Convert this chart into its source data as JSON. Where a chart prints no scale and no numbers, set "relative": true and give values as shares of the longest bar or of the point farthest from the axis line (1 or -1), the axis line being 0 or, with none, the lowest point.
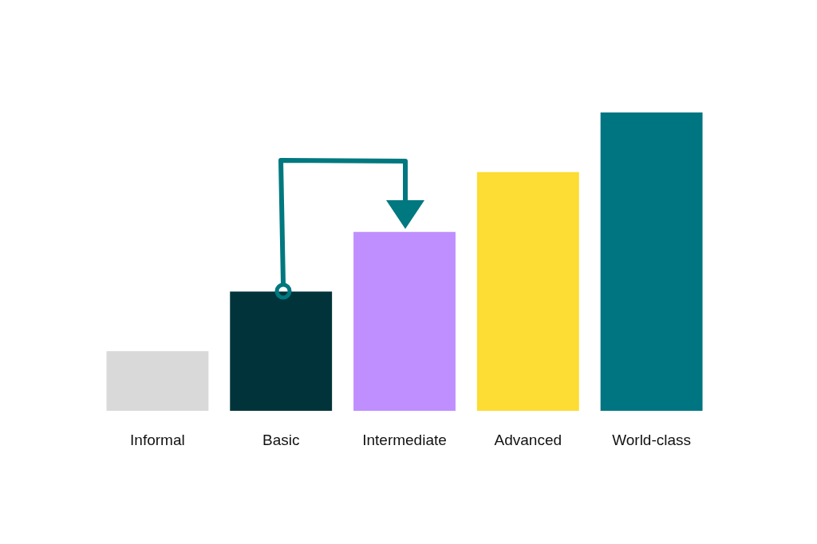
{
  "chart_data": {
    "type": "bar",
    "relative": true,
    "categories": [
      "Informal",
      "Basic",
      "Intermediate",
      "Advanced",
      "World-class"
    ],
    "values": [
      0.2,
      0.4,
      0.6,
      0.8,
      1
    ],
    "colors": [
      "#d9d9d9",
      "#00343a",
      "#bf8fff",
      "#fddc33",
      "#007582"
    ],
    "grid": false,
    "legend": false
  }
}
